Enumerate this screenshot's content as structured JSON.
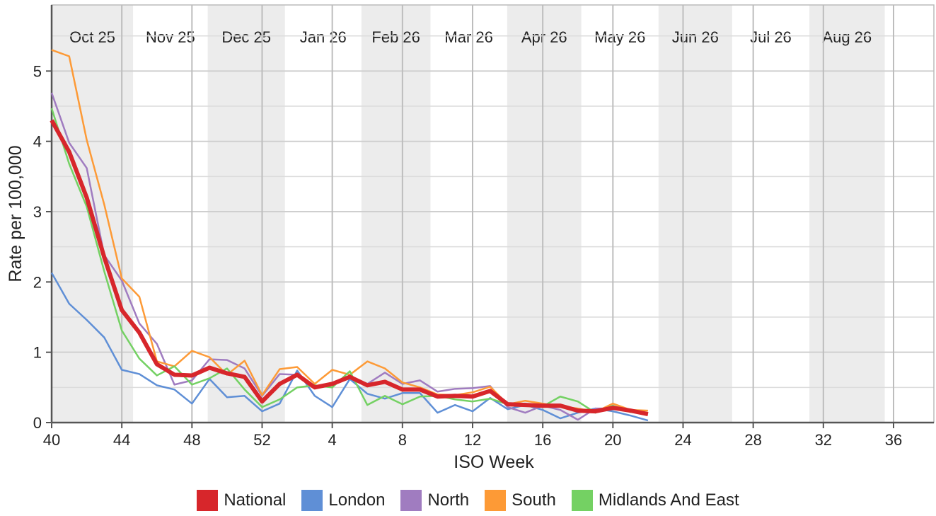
{
  "chart_data": {
    "type": "line",
    "xlabel": "ISO Week",
    "ylabel": "Rate per 100,000",
    "x": [
      40,
      41,
      42,
      43,
      44,
      45,
      46,
      47,
      48,
      49,
      50,
      51,
      52,
      53,
      54,
      55,
      56,
      57,
      58,
      59,
      60,
      61,
      62,
      63,
      64,
      65,
      66,
      67,
      68,
      69,
      70,
      71,
      72,
      73,
      74
    ],
    "series": [
      {
        "name": "National",
        "color": "#d7262b",
        "values": [
          4.3,
          3.85,
          3.2,
          2.35,
          1.6,
          1.28,
          0.83,
          0.68,
          0.67,
          0.78,
          0.7,
          0.65,
          0.3,
          0.55,
          0.68,
          0.5,
          0.55,
          0.65,
          0.53,
          0.58,
          0.47,
          0.47,
          0.37,
          0.38,
          0.37,
          0.45,
          0.26,
          0.25,
          0.24,
          0.24,
          0.17,
          0.16,
          0.21,
          0.17,
          0.12
        ]
      },
      {
        "name": "London",
        "color": "#5f8fd6",
        "values": [
          2.13,
          1.69,
          1.46,
          1.21,
          0.75,
          0.69,
          0.53,
          0.47,
          0.27,
          0.62,
          0.36,
          0.38,
          0.16,
          0.27,
          0.74,
          0.38,
          0.22,
          0.62,
          0.41,
          0.34,
          0.42,
          0.42,
          0.14,
          0.25,
          0.16,
          0.35,
          0.19,
          0.25,
          0.18,
          0.06,
          0.14,
          0.2,
          0.16,
          0.1,
          0.03
        ]
      },
      {
        "name": "North",
        "color": "#a07cc0",
        "values": [
          4.69,
          3.98,
          3.62,
          2.38,
          2.02,
          1.41,
          1.12,
          0.54,
          0.6,
          0.9,
          0.89,
          0.77,
          0.38,
          0.69,
          0.68,
          0.5,
          0.55,
          0.64,
          0.55,
          0.71,
          0.55,
          0.6,
          0.44,
          0.48,
          0.49,
          0.52,
          0.22,
          0.14,
          0.24,
          0.18,
          0.04,
          0.2,
          0.2,
          0.16,
          0.13
        ]
      },
      {
        "name": "South",
        "color": "#fd9a36",
        "values": [
          5.3,
          5.21,
          4.02,
          3.1,
          2.05,
          1.79,
          0.87,
          0.8,
          1.02,
          0.93,
          0.68,
          0.88,
          0.39,
          0.76,
          0.79,
          0.55,
          0.75,
          0.68,
          0.87,
          0.77,
          0.57,
          0.5,
          0.4,
          0.39,
          0.43,
          0.51,
          0.26,
          0.31,
          0.27,
          0.23,
          0.2,
          0.15,
          0.27,
          0.18,
          0.17
        ]
      },
      {
        "name": "Midlands And East",
        "color": "#74d163",
        "values": [
          4.47,
          3.68,
          3.07,
          2.15,
          1.31,
          0.91,
          0.67,
          0.8,
          0.54,
          0.63,
          0.77,
          0.47,
          0.22,
          0.33,
          0.5,
          0.53,
          0.5,
          0.73,
          0.25,
          0.38,
          0.26,
          0.37,
          0.38,
          0.33,
          0.3,
          0.34,
          0.26,
          0.27,
          0.23,
          0.37,
          0.3,
          0.14,
          0.24,
          0.15,
          0.13
        ]
      }
    ],
    "xlim": [
      40,
      90.3
    ],
    "ylim": [
      0,
      5.94
    ],
    "xticks": [
      40,
      44,
      48,
      52,
      {
        "value": 56,
        "label": "4"
      },
      {
        "value": 60,
        "label": "8"
      },
      {
        "value": 64,
        "label": "12"
      },
      {
        "value": 68,
        "label": "16"
      },
      {
        "value": 72,
        "label": "20"
      },
      {
        "value": 76,
        "label": "24"
      },
      {
        "value": 80,
        "label": "28"
      },
      {
        "value": 84,
        "label": "32"
      },
      {
        "value": 88,
        "label": "36"
      }
    ],
    "yticks": [
      0,
      1,
      2,
      3,
      4,
      5
    ],
    "yminor": [
      0.5,
      1.5,
      2.5,
      3.5,
      4.5,
      5.5
    ],
    "grid": true,
    "months": [
      {
        "label": "Oct 25",
        "start": 40,
        "end": 44.64
      },
      {
        "label": "Nov 25",
        "start": 44.64,
        "end": 48.9
      },
      {
        "label": "Dec 25",
        "start": 48.9,
        "end": 53.3
      },
      {
        "label": "Jan 26",
        "start": 53.3,
        "end": 57.66
      },
      {
        "label": "Feb 26",
        "start": 57.66,
        "end": 61.6
      },
      {
        "label": "Mar 26",
        "start": 61.6,
        "end": 65.97
      },
      {
        "label": "Apr 26",
        "start": 65.97,
        "end": 70.2
      },
      {
        "label": "May 26",
        "start": 70.2,
        "end": 74.6
      },
      {
        "label": "Jun 26",
        "start": 74.6,
        "end": 78.8
      },
      {
        "label": "Jul 26",
        "start": 78.8,
        "end": 83.2
      },
      {
        "label": "Aug 26",
        "start": 83.2,
        "end": 87.5
      }
    ]
  }
}
